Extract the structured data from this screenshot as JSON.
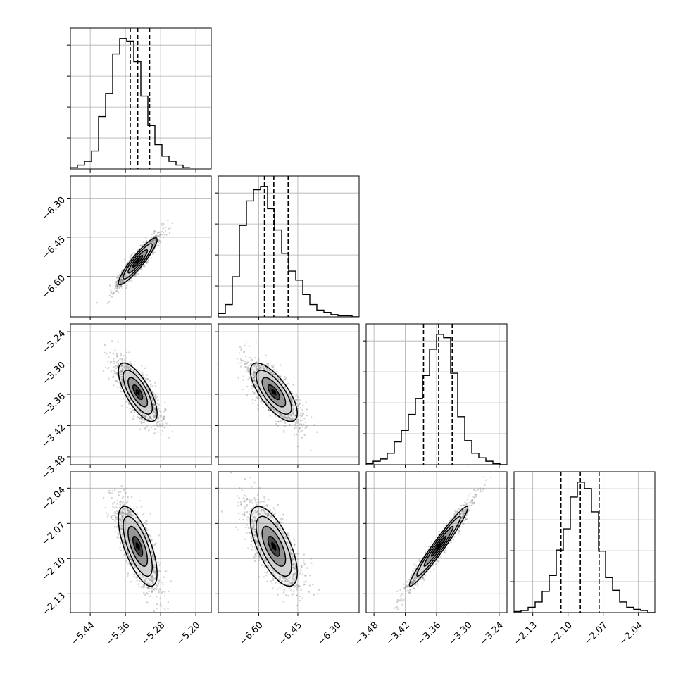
{
  "chart_data": {
    "type": "corner",
    "grid": true,
    "params": [
      {
        "id": "p1",
        "range": [
          -5.485,
          -5.165
        ],
        "ticks": [
          -5.44,
          -5.36,
          -5.28,
          -5.2
        ],
        "tick_labels": [
          "−5.44",
          "−5.36",
          "−5.28",
          "−5.20"
        ],
        "quantiles": [
          -5.349,
          -5.332,
          -5.305
        ],
        "median": -5.332,
        "sigma": 0.022,
        "hist_edges_start": -5.485,
        "hist_bin_width": 0.016,
        "hist_counts": [
          1,
          3,
          6,
          14,
          41,
          59,
          90,
          102,
          100,
          84,
          57,
          34,
          19,
          10,
          6,
          3,
          1
        ]
      },
      {
        "id": "p2",
        "range": [
          -6.755,
          -6.215
        ],
        "ticks": [
          -6.6,
          -6.45,
          -6.3
        ],
        "tick_labels": [
          "−6.60",
          "−6.45",
          "−6.30"
        ],
        "quantiles": [
          -6.578,
          -6.542,
          -6.487
        ],
        "median": -6.542,
        "sigma": 0.045,
        "hist_edges_start": -6.755,
        "hist_bin_width": 0.027,
        "hist_counts": [
          3,
          11,
          36,
          82,
          104,
          114,
          117,
          97,
          78,
          57,
          41,
          33,
          20,
          11,
          6,
          4,
          2,
          1,
          1,
          0
        ]
      },
      {
        "id": "p3",
        "range": [
          -3.495,
          -3.225
        ],
        "ticks": [
          -3.48,
          -3.42,
          -3.36,
          -3.3,
          -3.24
        ],
        "tick_labels": [
          "−3.48",
          "−3.42",
          "−3.36",
          "−3.30",
          "−3.24"
        ],
        "quantiles": [
          -3.385,
          -3.356,
          -3.33
        ],
        "median": -3.356,
        "sigma": 0.028,
        "hist_edges_start": -3.495,
        "hist_bin_width": 0.0135,
        "hist_counts": [
          1,
          3,
          5,
          10,
          20,
          30,
          44,
          58,
          78,
          101,
          114,
          111,
          80,
          42,
          21,
          10,
          6,
          3,
          1,
          0
        ]
      },
      {
        "id": "p4",
        "range": [
          -2.146,
          -2.026
        ],
        "ticks": [
          -2.13,
          -2.1,
          -2.07,
          -2.04
        ],
        "tick_labels": [
          "−2.13",
          "−2.10",
          "−2.07",
          "−2.04"
        ],
        "quantiles": [
          -2.106,
          -2.0895,
          -2.0735
        ],
        "median": -2.0895,
        "sigma": 0.017,
        "hist_edges_start": -2.146,
        "hist_bin_width": 0.006,
        "hist_counts": [
          1,
          2,
          5,
          10,
          20,
          35,
          59,
          79,
          109,
          123,
          117,
          95,
          58,
          33,
          21,
          10,
          5,
          3,
          2,
          0
        ]
      }
    ],
    "correlations": [
      {
        "row": 1,
        "col": 0,
        "rho": 0.92
      },
      {
        "row": 2,
        "col": 0,
        "rho": -0.72
      },
      {
        "row": 2,
        "col": 1,
        "rho": -0.72
      },
      {
        "row": 3,
        "col": 0,
        "rho": -0.68
      },
      {
        "row": 3,
        "col": 1,
        "rho": -0.66
      },
      {
        "row": 3,
        "col": 2,
        "rho": 0.97
      }
    ],
    "contour_levels_sigma": [
      0.5,
      1.0,
      1.5,
      2.0
    ],
    "colors": {
      "line": "#000000",
      "grid": "#b0b0b0",
      "points": "#7a7a7a",
      "density": "#000000"
    }
  }
}
